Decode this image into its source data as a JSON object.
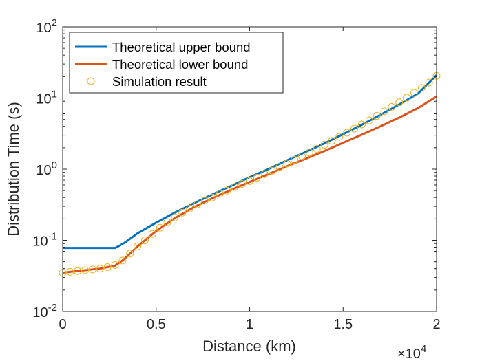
{
  "chart_data": {
    "type": "line",
    "title": "",
    "xlabel": "Distance (km)",
    "ylabel": "Distribution Time (s)",
    "x_scale": "linear",
    "y_scale": "log",
    "xlim": [
      0,
      20000
    ],
    "ylim": [
      0.01,
      100
    ],
    "x_multiplier": {
      "base": "×10",
      "exponent": "4"
    },
    "x_tick_values": [
      0,
      5000,
      10000,
      15000,
      20000
    ],
    "x_tick_labels": [
      "0",
      "0.5",
      "1",
      "1.5",
      "2"
    ],
    "y_tick_values": [
      0.01,
      0.1,
      1,
      10,
      100
    ],
    "y_tick_labels": [
      {
        "base": "10",
        "exp": "-2"
      },
      {
        "base": "10",
        "exp": "-1"
      },
      {
        "base": "10",
        "exp": "0"
      },
      {
        "base": "10",
        "exp": "1"
      },
      {
        "base": "10",
        "exp": "2"
      }
    ],
    "grid": false,
    "legend_position": "top-left",
    "series": [
      {
        "name": "Theoretical upper bound",
        "style": "line",
        "color": "#0072BD",
        "x": [
          0,
          1000,
          2000,
          2800,
          3000,
          3300,
          3600,
          4000,
          5000,
          6000,
          7000,
          8000,
          9000,
          10000,
          11000,
          12000,
          13000,
          14000,
          15000,
          16000,
          17000,
          18000,
          19000,
          20000
        ],
        "y": [
          0.078,
          0.078,
          0.078,
          0.078,
          0.083,
          0.092,
          0.105,
          0.125,
          0.177,
          0.245,
          0.33,
          0.44,
          0.58,
          0.77,
          1.0,
          1.33,
          1.75,
          2.3,
          3.1,
          4.2,
          5.8,
          8.1,
          11.5,
          21
        ]
      },
      {
        "name": "Theoretical lower bound",
        "style": "line",
        "color": "#D95319",
        "x": [
          0,
          400,
          800,
          1200,
          1600,
          2000,
          2400,
          2800,
          3200,
          3600,
          4000,
          4500,
          5000,
          6000,
          7000,
          8000,
          9000,
          10000,
          11000,
          12000,
          13000,
          14000,
          15000,
          16000,
          17000,
          18000,
          19000,
          20000
        ],
        "y": [
          0.035,
          0.036,
          0.037,
          0.038,
          0.039,
          0.04,
          0.042,
          0.044,
          0.052,
          0.065,
          0.082,
          0.105,
          0.135,
          0.205,
          0.29,
          0.39,
          0.51,
          0.66,
          0.85,
          1.1,
          1.4,
          1.8,
          2.35,
          3.05,
          4.0,
          5.3,
          7.2,
          10.5
        ]
      },
      {
        "name": "Simulation result",
        "style": "markers",
        "marker": "circle",
        "color": "#EDB120",
        "x": [
          0,
          400,
          800,
          1200,
          1600,
          2000,
          2400,
          2800,
          3200,
          3600,
          4000,
          4400,
          4800,
          5200,
          5600,
          6000,
          6400,
          6800,
          7200,
          7600,
          8000,
          8400,
          8800,
          9200,
          9600,
          10000,
          10400,
          10800,
          11200,
          11600,
          12000,
          12400,
          12800,
          13200,
          13600,
          14000,
          14400,
          14800,
          15200,
          15600,
          16000,
          16400,
          16800,
          17200,
          17600,
          18000,
          18400,
          18800,
          19200,
          19600,
          20000
        ],
        "y": [
          0.035,
          0.036,
          0.037,
          0.038,
          0.039,
          0.04,
          0.042,
          0.045,
          0.052,
          0.065,
          0.082,
          0.1,
          0.123,
          0.15,
          0.18,
          0.21,
          0.245,
          0.28,
          0.32,
          0.36,
          0.4,
          0.45,
          0.5,
          0.56,
          0.62,
          0.68,
          0.76,
          0.85,
          0.95,
          1.07,
          1.2,
          1.35,
          1.52,
          1.71,
          1.93,
          2.2,
          2.5,
          2.85,
          3.25,
          3.72,
          4.25,
          4.85,
          5.6,
          6.5,
          7.5,
          8.7,
          10.1,
          11.8,
          13.9,
          16.5,
          20.5
        ]
      }
    ]
  }
}
